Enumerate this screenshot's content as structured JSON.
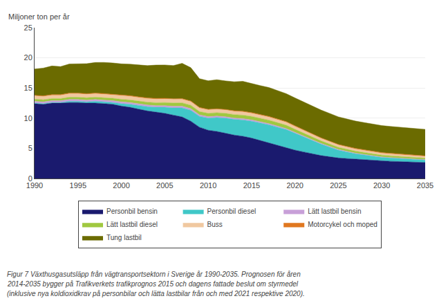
{
  "chart_data": {
    "type": "area",
    "stacked": true,
    "ylabel": "Miljoner ton per år",
    "annotations": [
      "Figur 7 Växthusgasutsläpp från vägtransportsektorn i Sverige år 1990-2035. Prognosen för åren",
      "2014-2035 bygger på Trafikverkets trafikprognos 2015 och dagens fattade beslut om styrmedel",
      "(inklusive nya koldioxidkrav på personbilar och lätta lastbilar från och med 2021 respektive 2020)."
    ],
    "x": [
      1990,
      1991,
      1992,
      1993,
      1994,
      1995,
      1996,
      1997,
      1998,
      1999,
      2000,
      2001,
      2002,
      2003,
      2004,
      2005,
      2006,
      2007,
      2008,
      2009,
      2010,
      2011,
      2012,
      2013,
      2014,
      2015,
      2016,
      2017,
      2018,
      2019,
      2020,
      2021,
      2022,
      2023,
      2024,
      2025,
      2026,
      2027,
      2028,
      2029,
      2030,
      2031,
      2032,
      2033,
      2034,
      2035
    ],
    "series": [
      {
        "name": "Personbil bensin",
        "color": "#1a1a6e",
        "values": [
          12.4,
          12.3,
          12.5,
          12.5,
          12.6,
          12.6,
          12.5,
          12.5,
          12.4,
          12.3,
          12.0,
          11.8,
          11.5,
          11.2,
          11.0,
          10.8,
          10.5,
          10.2,
          9.5,
          8.5,
          8.0,
          7.8,
          7.5,
          7.2,
          7.0,
          6.7,
          6.3,
          5.9,
          5.5,
          5.1,
          4.7,
          4.4,
          4.1,
          3.8,
          3.6,
          3.4,
          3.3,
          3.2,
          3.1,
          3.0,
          2.9,
          2.85,
          2.8,
          2.75,
          2.7,
          2.65
        ]
      },
      {
        "name": "Personbil diesel",
        "color": "#40c8c8",
        "values": [
          0.1,
          0.1,
          0.1,
          0.1,
          0.2,
          0.2,
          0.2,
          0.3,
          0.3,
          0.3,
          0.4,
          0.5,
          0.6,
          0.7,
          0.8,
          1.0,
          1.2,
          1.5,
          1.8,
          1.8,
          2.0,
          2.3,
          2.5,
          2.6,
          2.7,
          2.8,
          2.9,
          3.0,
          3.0,
          3.0,
          2.8,
          2.5,
          2.2,
          1.9,
          1.6,
          1.3,
          1.1,
          0.9,
          0.8,
          0.7,
          0.6,
          0.55,
          0.5,
          0.48,
          0.45,
          0.43
        ]
      },
      {
        "name": "Lätt lastbil bensin",
        "color": "#c8a0d8",
        "values": [
          0.3,
          0.3,
          0.3,
          0.3,
          0.3,
          0.3,
          0.3,
          0.3,
          0.3,
          0.3,
          0.3,
          0.3,
          0.28,
          0.28,
          0.27,
          0.27,
          0.27,
          0.27,
          0.27,
          0.25,
          0.25,
          0.24,
          0.23,
          0.22,
          0.22,
          0.21,
          0.2,
          0.19,
          0.18,
          0.17,
          0.16,
          0.15,
          0.14,
          0.13,
          0.12,
          0.11,
          0.1,
          0.1,
          0.09,
          0.09,
          0.08,
          0.08,
          0.07,
          0.07,
          0.07,
          0.06
        ]
      },
      {
        "name": "Lätt lastbil diesel",
        "color": "#a0c840",
        "values": [
          0.35,
          0.35,
          0.35,
          0.35,
          0.37,
          0.37,
          0.38,
          0.38,
          0.39,
          0.4,
          0.42,
          0.43,
          0.45,
          0.47,
          0.5,
          0.52,
          0.55,
          0.57,
          0.57,
          0.55,
          0.55,
          0.56,
          0.57,
          0.57,
          0.58,
          0.58,
          0.58,
          0.58,
          0.57,
          0.56,
          0.5,
          0.47,
          0.44,
          0.41,
          0.38,
          0.36,
          0.34,
          0.32,
          0.31,
          0.3,
          0.29,
          0.28,
          0.27,
          0.26,
          0.25,
          0.24
        ]
      },
      {
        "name": "Buss",
        "color": "#f0c8a0",
        "values": [
          0.55,
          0.55,
          0.55,
          0.55,
          0.58,
          0.58,
          0.58,
          0.58,
          0.58,
          0.58,
          0.6,
          0.6,
          0.6,
          0.6,
          0.6,
          0.6,
          0.6,
          0.6,
          0.6,
          0.58,
          0.57,
          0.56,
          0.55,
          0.54,
          0.54,
          0.53,
          0.52,
          0.51,
          0.5,
          0.49,
          0.47,
          0.45,
          0.43,
          0.41,
          0.4,
          0.38,
          0.37,
          0.36,
          0.35,
          0.34,
          0.33,
          0.32,
          0.31,
          0.3,
          0.29,
          0.28
        ]
      },
      {
        "name": "Motorcykel och moped",
        "color": "#e07820",
        "values": [
          0.1,
          0.1,
          0.1,
          0.1,
          0.1,
          0.1,
          0.1,
          0.1,
          0.1,
          0.1,
          0.1,
          0.1,
          0.1,
          0.1,
          0.1,
          0.1,
          0.1,
          0.1,
          0.1,
          0.1,
          0.1,
          0.1,
          0.1,
          0.1,
          0.1,
          0.1,
          0.1,
          0.1,
          0.1,
          0.1,
          0.1,
          0.1,
          0.1,
          0.1,
          0.1,
          0.1,
          0.1,
          0.1,
          0.1,
          0.1,
          0.1,
          0.1,
          0.1,
          0.1,
          0.1,
          0.1
        ]
      },
      {
        "name": "Tung lastbil",
        "color": "#6b6b00",
        "values": [
          4.35,
          4.6,
          4.75,
          4.65,
          4.83,
          4.85,
          4.97,
          5.07,
          5.17,
          5.17,
          5.18,
          5.22,
          5.32,
          5.36,
          5.53,
          5.53,
          5.5,
          5.85,
          5.53,
          4.77,
          4.73,
          4.82,
          4.73,
          4.81,
          4.96,
          4.79,
          4.8,
          4.8,
          4.68,
          4.64,
          4.63,
          4.62,
          4.61,
          4.6,
          4.59,
          4.57,
          4.55,
          4.53,
          4.51,
          4.49,
          4.47,
          4.45,
          4.44,
          4.42,
          4.4,
          4.38
        ]
      }
    ],
    "xlim": [
      1990,
      2035
    ],
    "xticks": [
      1990,
      1995,
      2000,
      2005,
      2010,
      2015,
      2020,
      2025,
      2030,
      2035
    ],
    "ylim": [
      0,
      25
    ],
    "yticks": [
      0,
      5,
      10,
      15,
      20,
      25
    ],
    "grid": true,
    "legend": "bottom"
  }
}
